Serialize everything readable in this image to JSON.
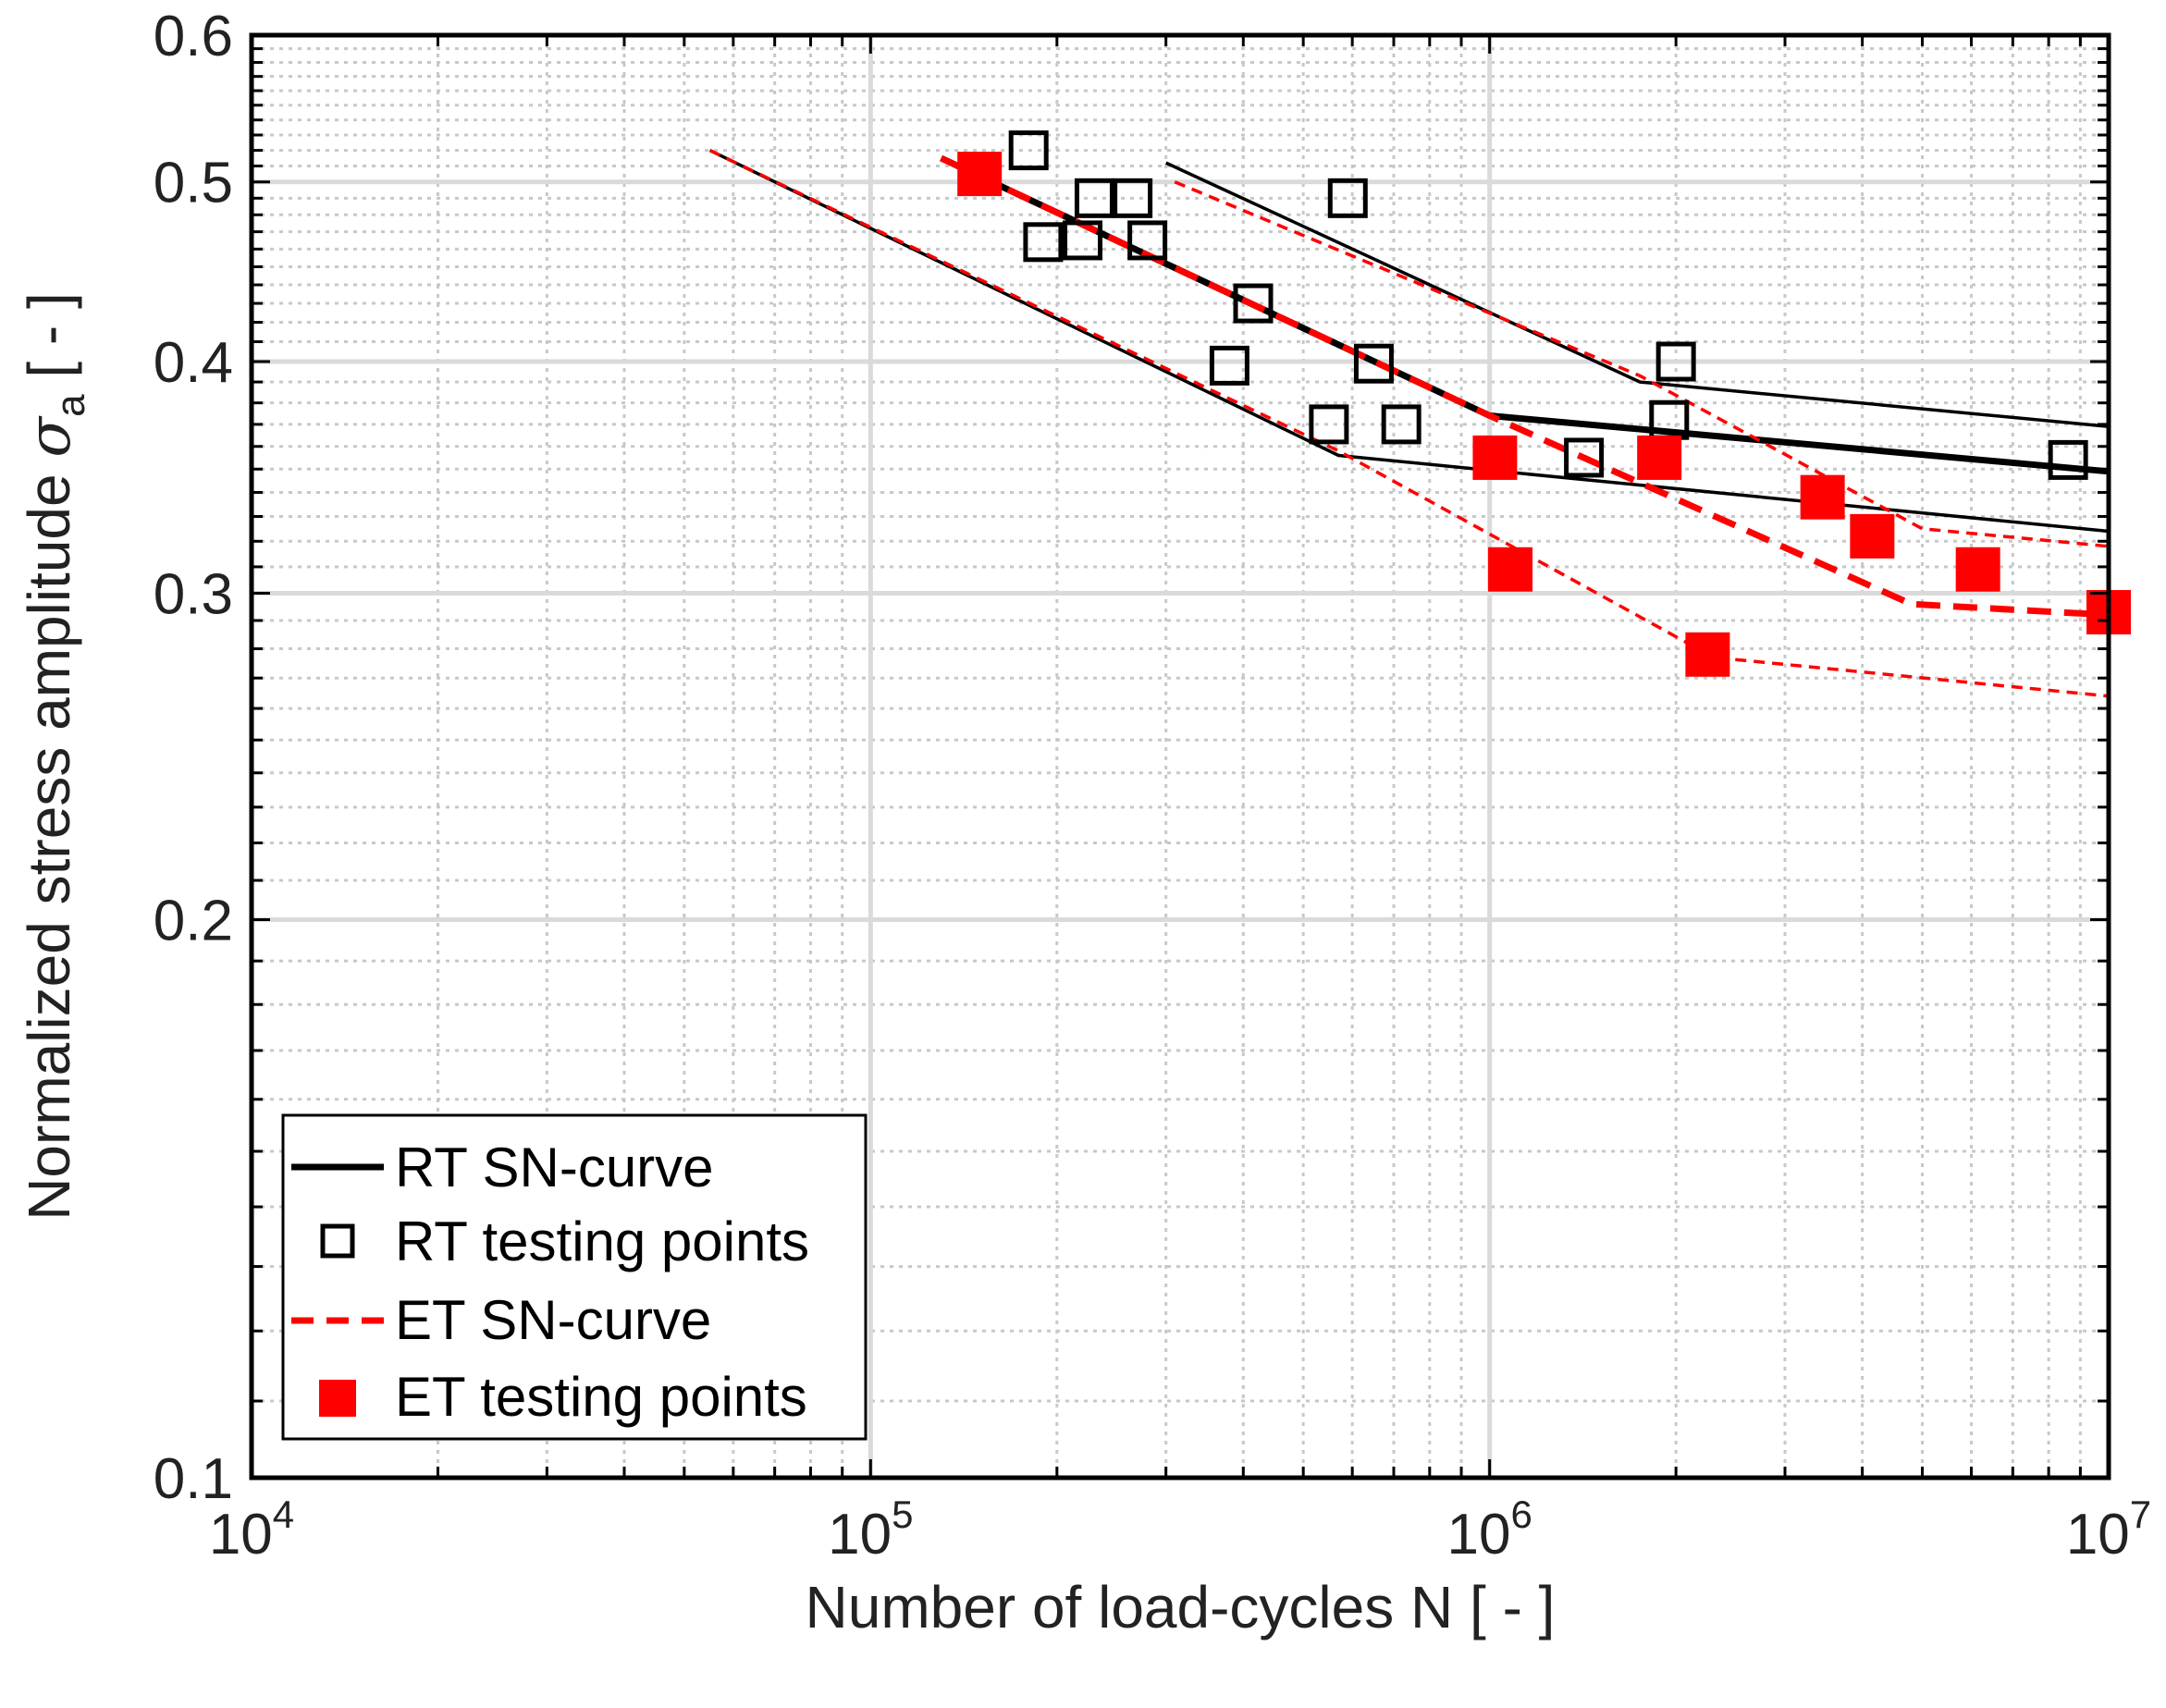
{
  "chart_data": {
    "type": "scatter",
    "title": "",
    "xlabel": "Number of load-cycles N [ - ]",
    "ylabel_main": "Normalized stress amplitude ",
    "ylabel_symbol": "σ",
    "ylabel_subscript": "a",
    "ylabel_tail": " [ - ]",
    "xscale": "log",
    "yscale": "log",
    "xlim": [
      10000,
      10000000
    ],
    "ylim": [
      0.1,
      0.6
    ],
    "grid": true,
    "x_ticks": [
      {
        "value": 10000,
        "base": "10",
        "exp": "4"
      },
      {
        "value": 100000,
        "base": "10",
        "exp": "5"
      },
      {
        "value": 1000000,
        "base": "10",
        "exp": "6"
      },
      {
        "value": 10000000,
        "base": "10",
        "exp": "7"
      }
    ],
    "y_ticks": [
      {
        "value": 0.1,
        "label": "0.1"
      },
      {
        "value": 0.2,
        "label": "0.2"
      },
      {
        "value": 0.3,
        "label": "0.3"
      },
      {
        "value": 0.4,
        "label": "0.4"
      },
      {
        "value": 0.5,
        "label": "0.5"
      },
      {
        "value": 0.6,
        "label": "0.6"
      }
    ],
    "legend": {
      "position": "bottom-left",
      "entries": [
        {
          "label": "RT SN-curve",
          "style": "line",
          "color": "#000000"
        },
        {
          "label": "RT testing points",
          "style": "open-square",
          "color": "#000000"
        },
        {
          "label": "ET SN-curve",
          "style": "dashed-line",
          "color": "#ff0000"
        },
        {
          "label": "ET testing points",
          "style": "filled-square",
          "color": "#ff0000"
        }
      ]
    },
    "series": [
      {
        "name": "RT SN-curve",
        "kind": "line",
        "color": "#000000",
        "dash": "solid",
        "weight": "thick",
        "points": [
          [
            130000,
            0.515
          ],
          [
            1000000,
            0.374
          ],
          [
            10000000,
            0.349
          ]
        ]
      },
      {
        "name": "RT SN-curve upper band",
        "kind": "line",
        "color": "#000000",
        "dash": "solid",
        "weight": "thin",
        "points": [
          [
            300000,
            0.512
          ],
          [
            1750000,
            0.39
          ],
          [
            10000000,
            0.369
          ]
        ]
      },
      {
        "name": "RT SN-curve lower band",
        "kind": "line",
        "color": "#000000",
        "dash": "solid",
        "weight": "thin",
        "points": [
          [
            55000,
            0.52
          ],
          [
            570000,
            0.356
          ],
          [
            10000000,
            0.324
          ]
        ]
      },
      {
        "name": "ET SN-curve",
        "kind": "line",
        "color": "#ff0000",
        "dash": "dashed",
        "weight": "thick",
        "points": [
          [
            130000,
            0.515
          ],
          [
            1000000,
            0.374
          ],
          [
            4800000,
            0.296
          ],
          [
            10000000,
            0.292
          ]
        ]
      },
      {
        "name": "ET SN-curve upper band",
        "kind": "line",
        "color": "#ff0000",
        "dash": "dashed",
        "weight": "thin",
        "points": [
          [
            310000,
            0.5
          ],
          [
            1750000,
            0.393
          ],
          [
            5000000,
            0.325
          ],
          [
            10000000,
            0.318
          ]
        ]
      },
      {
        "name": "ET SN-curve lower band",
        "kind": "line",
        "color": "#ff0000",
        "dash": "dashed",
        "weight": "thin",
        "points": [
          [
            55000,
            0.52
          ],
          [
            570000,
            0.358
          ],
          [
            2300000,
            0.277
          ],
          [
            10000000,
            0.264
          ]
        ]
      },
      {
        "name": "RT testing points",
        "kind": "marker",
        "marker": "open-square",
        "color": "#000000",
        "points": [
          [
            180000,
            0.52
          ],
          [
            190000,
            0.464
          ],
          [
            220000,
            0.465
          ],
          [
            230000,
            0.49
          ],
          [
            265000,
            0.49
          ],
          [
            280000,
            0.465
          ],
          [
            380000,
            0.398
          ],
          [
            415000,
            0.43
          ],
          [
            550000,
            0.37
          ],
          [
            590000,
            0.49
          ],
          [
            650000,
            0.399
          ],
          [
            720000,
            0.37
          ],
          [
            1420000,
            0.355
          ],
          [
            1950000,
            0.372
          ],
          [
            2000000,
            0.4
          ],
          [
            8600000,
            0.354
          ]
        ]
      },
      {
        "name": "ET testing points",
        "kind": "marker",
        "marker": "filled-square",
        "color": "#ff0000",
        "points": [
          [
            150000,
            0.505
          ],
          [
            1020000,
            0.355
          ],
          [
            1080000,
            0.309
          ],
          [
            1880000,
            0.355
          ],
          [
            2250000,
            0.278
          ],
          [
            3450000,
            0.338
          ],
          [
            4150000,
            0.322
          ],
          [
            6150000,
            0.309
          ],
          [
            10000000,
            0.293
          ]
        ]
      }
    ]
  }
}
